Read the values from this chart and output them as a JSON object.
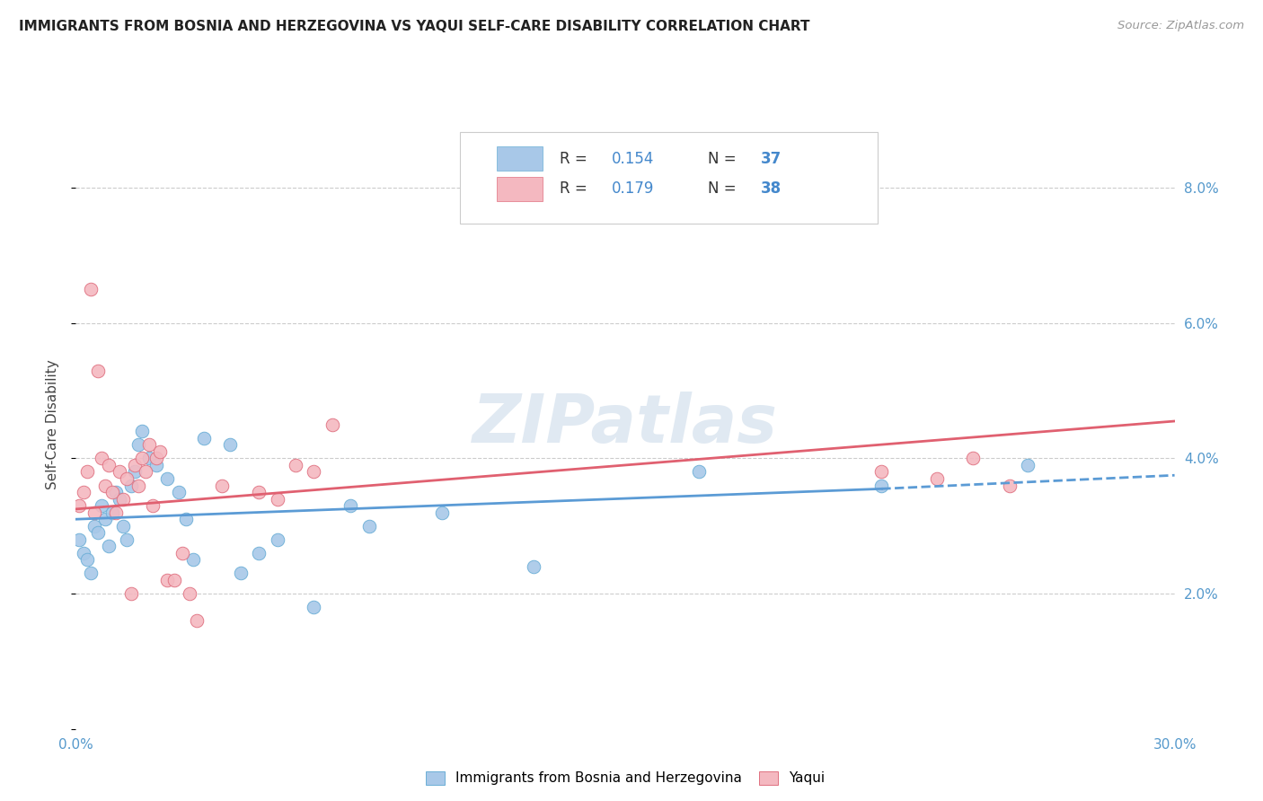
{
  "title": "IMMIGRANTS FROM BOSNIA AND HERZEGOVINA VS YAQUI SELF-CARE DISABILITY CORRELATION CHART",
  "source": "Source: ZipAtlas.com",
  "ylabel": "Self-Care Disability",
  "right_yticks": [
    "8.0%",
    "6.0%",
    "4.0%",
    "2.0%"
  ],
  "right_ytick_vals": [
    8.0,
    6.0,
    4.0,
    2.0
  ],
  "xlim": [
    0.0,
    30.0
  ],
  "ylim": [
    0.0,
    9.0
  ],
  "legend_label1": "Immigrants from Bosnia and Herzegovina",
  "legend_label2": "Yaqui",
  "blue_fill": "#a8c8e8",
  "blue_edge": "#6aaed6",
  "pink_fill": "#f4b8c0",
  "pink_edge": "#e07080",
  "blue_line": "#5b9bd5",
  "pink_line": "#e06070",
  "watermark": "ZIPatlas",
  "blue_scatter_x": [
    0.1,
    0.2,
    0.3,
    0.4,
    0.5,
    0.6,
    0.7,
    0.8,
    0.9,
    1.0,
    1.1,
    1.2,
    1.3,
    1.4,
    1.5,
    1.6,
    1.7,
    1.8,
    2.0,
    2.2,
    2.5,
    2.8,
    3.0,
    3.2,
    3.5,
    4.2,
    4.5,
    5.0,
    5.5,
    6.5,
    7.5,
    8.0,
    10.0,
    12.5,
    17.0,
    22.0,
    26.0
  ],
  "blue_scatter_y": [
    2.8,
    2.6,
    2.5,
    2.3,
    3.0,
    2.9,
    3.3,
    3.1,
    2.7,
    3.2,
    3.5,
    3.4,
    3.0,
    2.8,
    3.6,
    3.8,
    4.2,
    4.4,
    4.0,
    3.9,
    3.7,
    3.5,
    3.1,
    2.5,
    4.3,
    4.2,
    2.3,
    2.6,
    2.8,
    1.8,
    3.3,
    3.0,
    3.2,
    2.4,
    3.8,
    3.6,
    3.9
  ],
  "pink_scatter_x": [
    0.1,
    0.2,
    0.3,
    0.4,
    0.5,
    0.6,
    0.7,
    0.8,
    0.9,
    1.0,
    1.1,
    1.2,
    1.3,
    1.4,
    1.5,
    1.6,
    1.7,
    1.8,
    1.9,
    2.0,
    2.1,
    2.2,
    2.3,
    2.5,
    2.7,
    2.9,
    3.1,
    3.3,
    4.0,
    5.0,
    5.5,
    6.0,
    6.5,
    7.0,
    22.0,
    23.5,
    24.5,
    25.5
  ],
  "pink_scatter_y": [
    3.3,
    3.5,
    3.8,
    6.5,
    3.2,
    5.3,
    4.0,
    3.6,
    3.9,
    3.5,
    3.2,
    3.8,
    3.4,
    3.7,
    2.0,
    3.9,
    3.6,
    4.0,
    3.8,
    4.2,
    3.3,
    4.0,
    4.1,
    2.2,
    2.2,
    2.6,
    2.0,
    1.6,
    3.6,
    3.5,
    3.4,
    3.9,
    3.8,
    4.5,
    3.8,
    3.7,
    4.0,
    3.6
  ],
  "blue_trend_x0": 0.0,
  "blue_trend_y0": 3.1,
  "blue_trend_x1": 22.0,
  "blue_trend_y1": 3.55,
  "blue_dash_x0": 22.0,
  "blue_dash_y0": 3.55,
  "blue_dash_x1": 30.0,
  "blue_dash_y1": 3.75,
  "pink_trend_x0": 0.0,
  "pink_trend_y0": 3.25,
  "pink_trend_x1": 30.0,
  "pink_trend_y1": 4.55
}
